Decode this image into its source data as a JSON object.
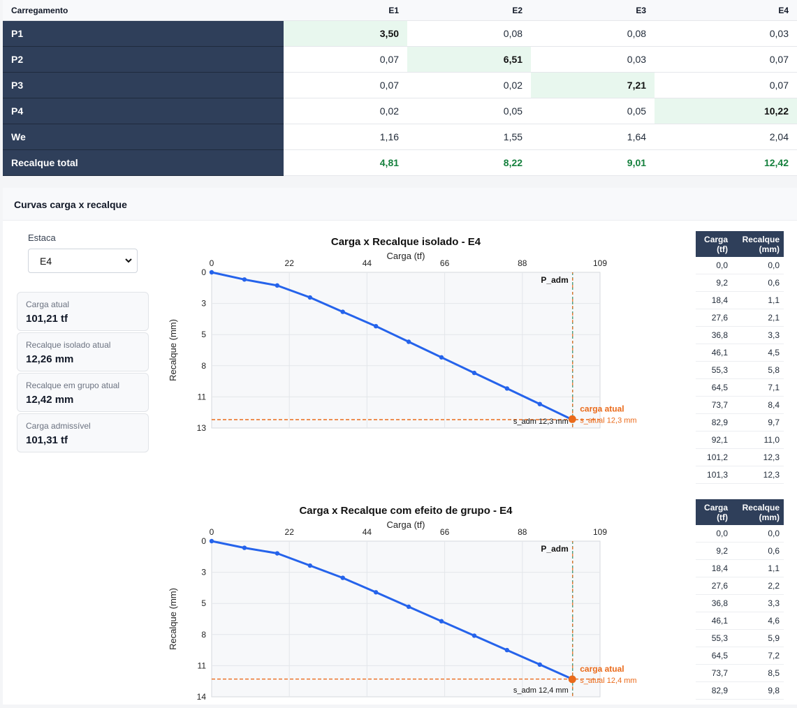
{
  "matrix": {
    "header": [
      "Carregamento",
      "E1",
      "E2",
      "E3",
      "E4"
    ],
    "rows": [
      {
        "label": "P1",
        "values": [
          "3,50",
          "0,08",
          "0,08",
          "0,03"
        ],
        "highlight": 0
      },
      {
        "label": "P2",
        "values": [
          "0,07",
          "6,51",
          "0,03",
          "0,07"
        ],
        "highlight": 1
      },
      {
        "label": "P3",
        "values": [
          "0,07",
          "0,02",
          "7,21",
          "0,07"
        ],
        "highlight": 2
      },
      {
        "label": "P4",
        "values": [
          "0,02",
          "0,05",
          "0,05",
          "10,22"
        ],
        "highlight": 3
      },
      {
        "label": "We",
        "values": [
          "1,16",
          "1,55",
          "1,64",
          "2,04"
        ],
        "highlight": -1
      }
    ],
    "total": {
      "label": "Recalque total",
      "values": [
        "4,81",
        "8,22",
        "9,01",
        "12,42"
      ]
    }
  },
  "panel": {
    "title": "Curvas carga x recalque",
    "estaca_label": "Estaca",
    "estaca_value": "E4",
    "cards": [
      {
        "label": "Carga atual",
        "value": "101,21 tf"
      },
      {
        "label": "Recalque isolado atual",
        "value": "12,26 mm"
      },
      {
        "label": "Recalque em grupo atual",
        "value": "12,42 mm"
      },
      {
        "label": "Carga admissível",
        "value": "101,31 tf"
      }
    ]
  },
  "colors": {
    "line": "#2563eb",
    "marker": "#ea6a1a",
    "dark": "#2f3f5a",
    "total_green": "#15803d",
    "diag_bg": "#e8f7ee"
  },
  "chart_data": [
    {
      "type": "line",
      "title": "Carga x Recalque isolado - E4",
      "xlabel": "Carga (tf)",
      "ylabel": "Recalque (mm)",
      "xlim": [
        0,
        109
      ],
      "ylim": [
        0,
        13
      ],
      "y_inverted": true,
      "x_axis_position": "top",
      "x_ticks": [
        "0",
        "22",
        "44",
        "66",
        "88",
        "109"
      ],
      "y_ticks": [
        "0",
        "3",
        "5",
        "8",
        "11",
        "13"
      ],
      "grid": true,
      "x": [
        0,
        9.2,
        18.4,
        27.6,
        36.8,
        46.1,
        55.3,
        64.5,
        73.7,
        82.9,
        92.1,
        101.2
      ],
      "y": [
        0,
        0.6,
        1.1,
        2.1,
        3.3,
        4.5,
        5.8,
        7.1,
        8.4,
        9.7,
        11.0,
        12.3
      ],
      "p_adm_x": 101.31,
      "p_adm_label": "P_adm",
      "s_adm_y": 12.3,
      "s_adm_label": "s_adm 12,3 mm",
      "current": {
        "x": 101.21,
        "y": 12.26,
        "label": "carga atual",
        "sublabel": "s_atual 12,3 mm"
      },
      "table": {
        "headers": [
          [
            "Carga",
            "(tf)"
          ],
          [
            "Recalque",
            "(mm)"
          ]
        ],
        "rows": [
          [
            "0,0",
            "0,0"
          ],
          [
            "9,2",
            "0,6"
          ],
          [
            "18,4",
            "1,1"
          ],
          [
            "27,6",
            "2,1"
          ],
          [
            "36,8",
            "3,3"
          ],
          [
            "46,1",
            "4,5"
          ],
          [
            "55,3",
            "5,8"
          ],
          [
            "64,5",
            "7,1"
          ],
          [
            "73,7",
            "8,4"
          ],
          [
            "82,9",
            "9,7"
          ],
          [
            "92,1",
            "11,0"
          ],
          [
            "101,2",
            "12,3"
          ],
          [
            "101,3",
            "12,3"
          ]
        ]
      }
    },
    {
      "type": "line",
      "title": "Carga x Recalque com efeito de grupo - E4",
      "xlabel": "Carga (tf)",
      "ylabel": "Recalque (mm)",
      "xlim": [
        0,
        109
      ],
      "ylim": [
        0,
        14
      ],
      "y_inverted": true,
      "x_axis_position": "top",
      "x_ticks": [
        "0",
        "22",
        "44",
        "66",
        "88",
        "109"
      ],
      "y_ticks": [
        "0",
        "3",
        "5",
        "8",
        "11",
        "14"
      ],
      "grid": true,
      "x": [
        0,
        9.2,
        18.4,
        27.6,
        36.8,
        46.1,
        55.3,
        64.5,
        73.7,
        82.9,
        92.1,
        101.2
      ],
      "y": [
        0,
        0.6,
        1.1,
        2.2,
        3.3,
        4.6,
        5.9,
        7.2,
        8.5,
        9.8,
        11.1,
        12.4
      ],
      "p_adm_x": 101.31,
      "p_adm_label": "P_adm",
      "s_adm_y": 12.4,
      "s_adm_label": "s_adm 12,4 mm",
      "current": {
        "x": 101.21,
        "y": 12.42,
        "label": "carga atual",
        "sublabel": "s_atual 12,4 mm"
      },
      "table": {
        "headers": [
          [
            "Carga",
            "(tf)"
          ],
          [
            "Recalque",
            "(mm)"
          ]
        ],
        "rows": [
          [
            "0,0",
            "0,0"
          ],
          [
            "9,2",
            "0,6"
          ],
          [
            "18,4",
            "1,1"
          ],
          [
            "27,6",
            "2,2"
          ],
          [
            "36,8",
            "3,3"
          ],
          [
            "46,1",
            "4,6"
          ],
          [
            "55,3",
            "5,9"
          ],
          [
            "64,5",
            "7,2"
          ],
          [
            "73,7",
            "8,5"
          ],
          [
            "82,9",
            "9,8"
          ]
        ]
      }
    }
  ]
}
